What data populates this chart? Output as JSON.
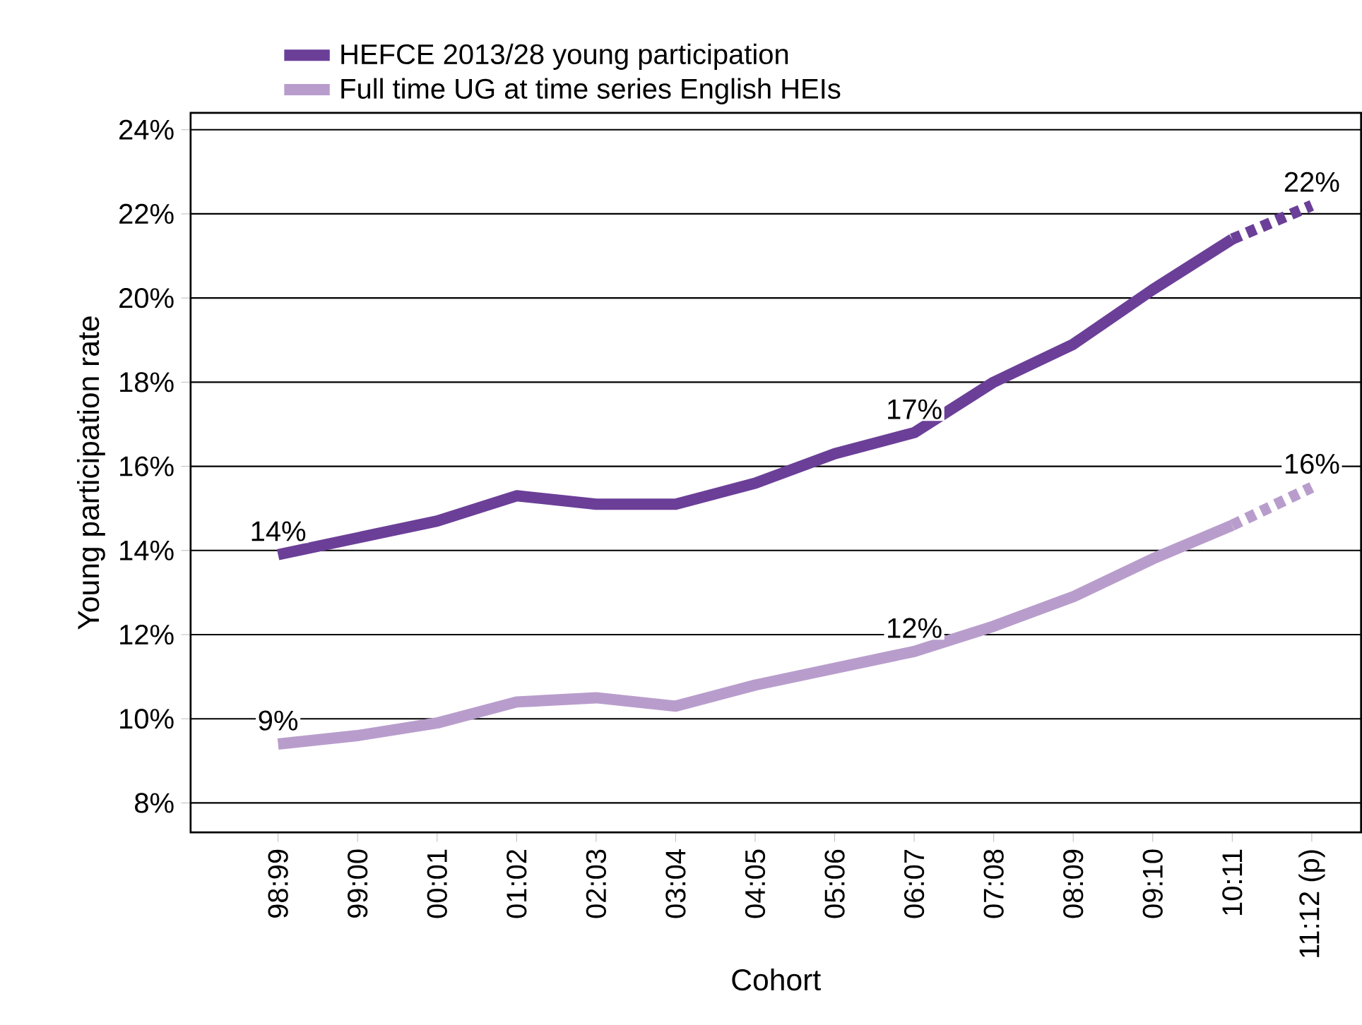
{
  "chart_data": {
    "type": "line",
    "xlabel": "Cohort",
    "ylabel": "Young participation rate",
    "categories": [
      "98:99",
      "99:00",
      "00:01",
      "01:02",
      "02:03",
      "03:04",
      "04:05",
      "05:06",
      "06:07",
      "07:08",
      "08:09",
      "09:10",
      "10:11",
      "11:12 (p)"
    ],
    "series": [
      {
        "name": "HEFCE 2013/28 young participation",
        "color": "#6b3f98",
        "line_style": "solid",
        "values": [
          13.9,
          14.3,
          14.7,
          15.3,
          15.1,
          15.1,
          15.6,
          16.3,
          16.8,
          18.0,
          18.9,
          20.2,
          21.4,
          null
        ],
        "value_labels": [
          "14%",
          null,
          null,
          null,
          null,
          null,
          null,
          null,
          "17%",
          null,
          null,
          null,
          null,
          null
        ]
      },
      {
        "name": "Full time UG at time series English HEIs",
        "color": "#b89dcc",
        "line_style": "solid",
        "values": [
          9.4,
          9.6,
          9.9,
          10.4,
          10.5,
          10.3,
          10.8,
          11.2,
          11.6,
          12.2,
          12.9,
          13.8,
          14.6,
          null
        ],
        "value_labels": [
          "9%",
          null,
          null,
          null,
          null,
          null,
          null,
          null,
          "12%",
          null,
          null,
          null,
          null,
          null
        ]
      },
      {
        "color": "#6b3f98",
        "line_style": "dotted",
        "values": [
          null,
          null,
          null,
          null,
          null,
          null,
          null,
          null,
          null,
          null,
          null,
          null,
          21.4,
          22.2
        ],
        "value_labels": [
          null,
          null,
          null,
          null,
          null,
          null,
          null,
          null,
          null,
          null,
          null,
          null,
          null,
          "22%"
        ]
      },
      {
        "color": "#b89dcc",
        "line_style": "dotted",
        "values": [
          null,
          null,
          null,
          null,
          null,
          null,
          null,
          null,
          null,
          null,
          null,
          null,
          14.6,
          15.5
        ],
        "value_labels": [
          null,
          null,
          null,
          null,
          null,
          null,
          null,
          null,
          null,
          null,
          null,
          null,
          null,
          "16%"
        ]
      }
    ],
    "ylim": [
      7.3,
      24.4
    ],
    "yticks": [
      {
        "value": 8,
        "label": "8%"
      },
      {
        "value": 10,
        "label": "10%"
      },
      {
        "value": 12,
        "label": "12%"
      },
      {
        "value": 14,
        "label": "14%"
      },
      {
        "value": 16,
        "label": "16%"
      },
      {
        "value": 18,
        "label": "18%"
      },
      {
        "value": 20,
        "label": "20%"
      },
      {
        "value": 22,
        "label": "22%"
      },
      {
        "value": 24,
        "label": "24%"
      }
    ],
    "grid": "y",
    "legend": "top left",
    "marker": "none"
  }
}
